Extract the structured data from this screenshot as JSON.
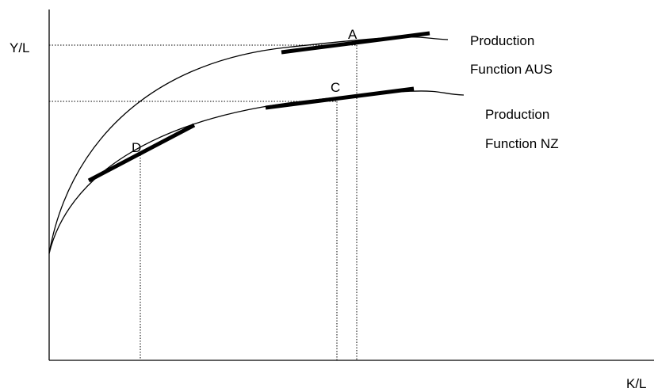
{
  "axes": {
    "y_label": "Y/L",
    "x_label": "K/L"
  },
  "points": [
    {
      "label": "A"
    },
    {
      "label": "C"
    },
    {
      "label": "D"
    }
  ],
  "curves": [
    {
      "label_lines": [
        "Production",
        "Function AUS"
      ]
    },
    {
      "label_lines": [
        "Production",
        "Function NZ"
      ]
    }
  ]
}
